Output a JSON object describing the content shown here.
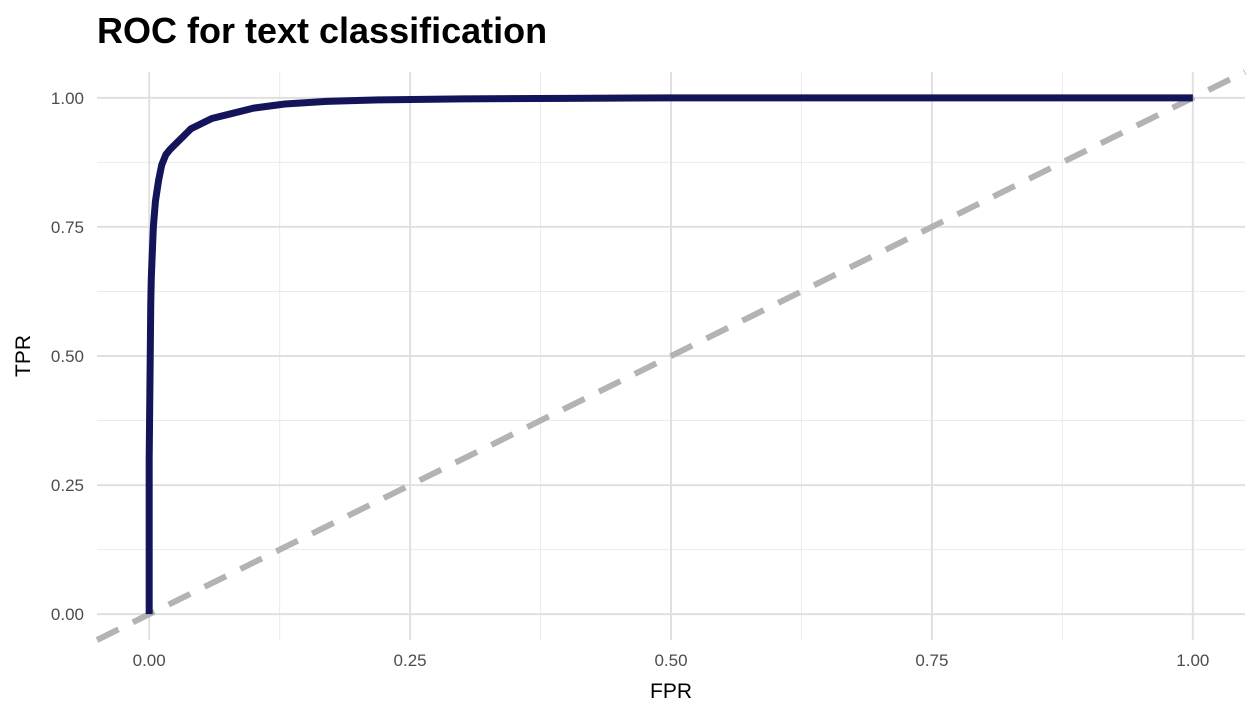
{
  "chart_data": {
    "type": "line",
    "title": "ROC for text classification",
    "xlabel": "FPR",
    "ylabel": "TPR",
    "xlim": [
      -0.05,
      1.05
    ],
    "ylim": [
      -0.05,
      1.05
    ],
    "x_ticks": [
      "0.00",
      "0.25",
      "0.50",
      "0.75",
      "1.00"
    ],
    "y_ticks": [
      "0.00",
      "0.25",
      "0.50",
      "0.75",
      "1.00"
    ],
    "x_tick_values": [
      0,
      0.25,
      0.5,
      0.75,
      1
    ],
    "y_tick_values": [
      0,
      0.25,
      0.5,
      0.75,
      1
    ],
    "grid": true,
    "series": [
      {
        "color": "#14145a",
        "points": [
          [
            0,
            0
          ],
          [
            0,
            0.3
          ],
          [
            0.0005,
            0.4
          ],
          [
            0.001,
            0.5
          ],
          [
            0.0015,
            0.6
          ],
          [
            0.002,
            0.65
          ],
          [
            0.003,
            0.7
          ],
          [
            0.004,
            0.75
          ],
          [
            0.006,
            0.8
          ],
          [
            0.009,
            0.84
          ],
          [
            0.012,
            0.87
          ],
          [
            0.016,
            0.89
          ],
          [
            0.02,
            0.9
          ],
          [
            0.025,
            0.91
          ],
          [
            0.03,
            0.92
          ],
          [
            0.04,
            0.94
          ],
          [
            0.05,
            0.95
          ],
          [
            0.06,
            0.96
          ],
          [
            0.08,
            0.97
          ],
          [
            0.1,
            0.98
          ],
          [
            0.13,
            0.988
          ],
          [
            0.17,
            0.993
          ],
          [
            0.22,
            0.996
          ],
          [
            0.3,
            0.998
          ],
          [
            0.4,
            0.999
          ],
          [
            0.5,
            1
          ],
          [
            0.75,
            1
          ],
          [
            1,
            1
          ]
        ]
      }
    ],
    "reference_line": {
      "style": "dashed",
      "color": "#b3b3b3",
      "points": [
        [
          -0.05,
          -0.05
        ],
        [
          1.05,
          1.05
        ]
      ]
    }
  }
}
